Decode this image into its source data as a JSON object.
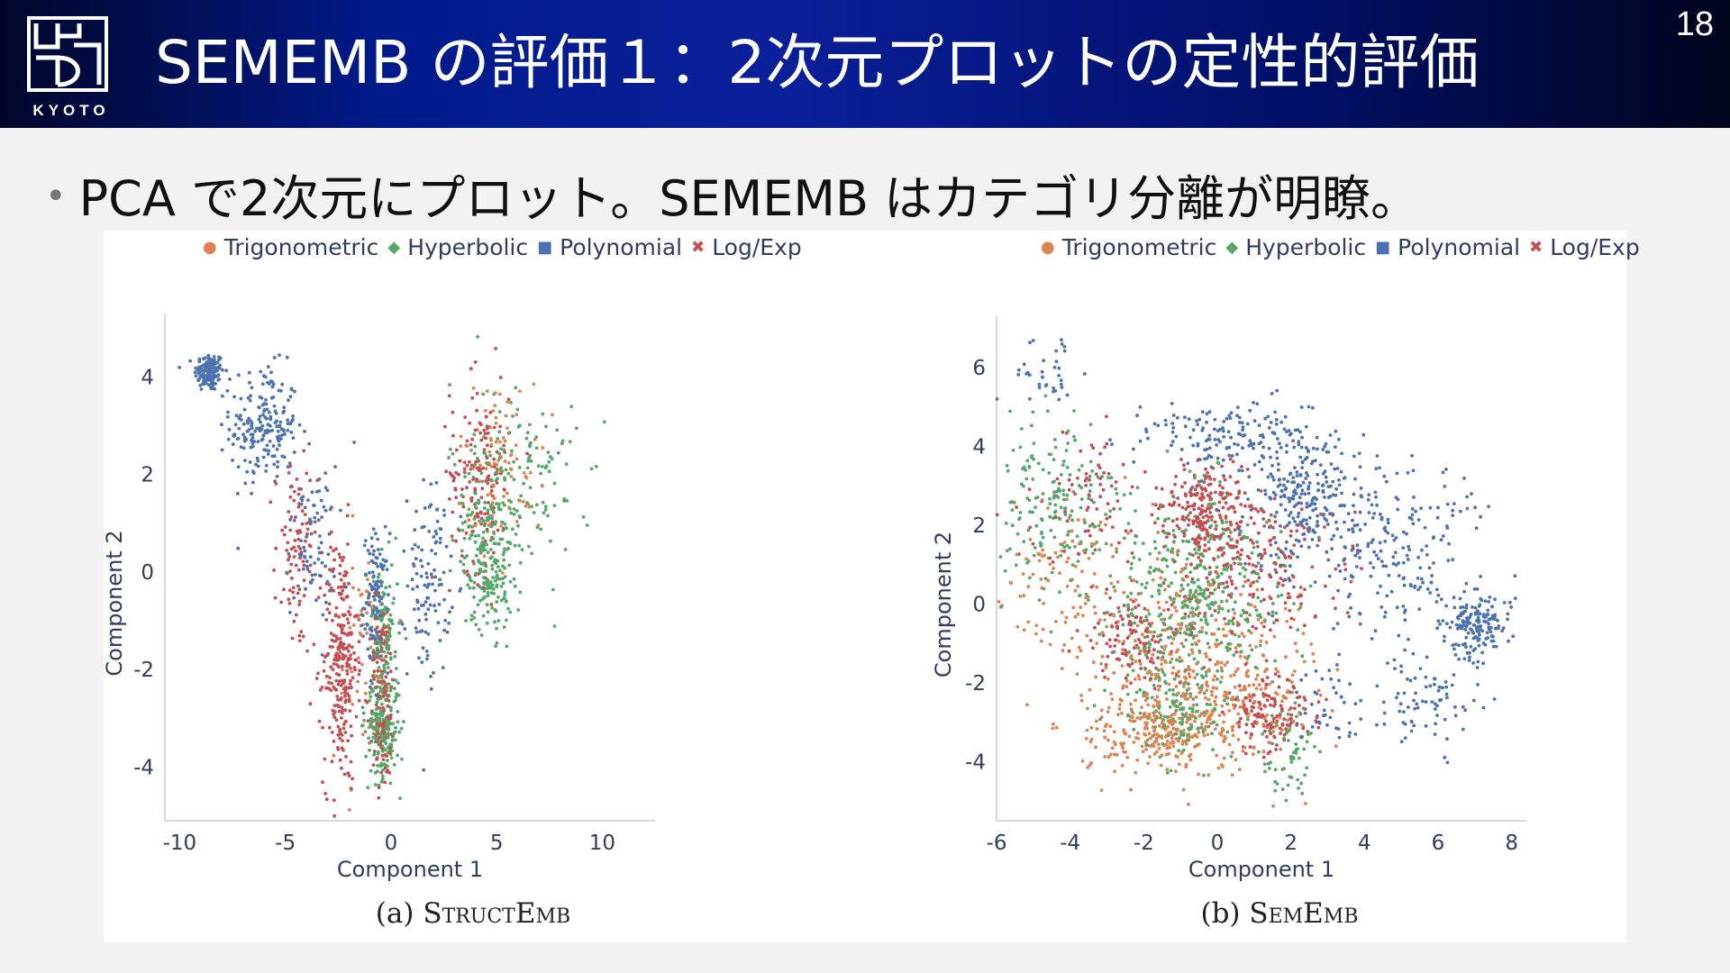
{
  "header": {
    "title": "SEMEMB の評価１：2次元プロットの定性的評価",
    "page_number": "18",
    "logo_text": "KYOTO"
  },
  "bullet": {
    "text": "PCA で2次元にプロット。SEMEMB はカテゴリ分離が明瞭。"
  },
  "colors": {
    "Trigonometric": "#dd8452",
    "Hyperbolic": "#55a868",
    "Polynomial": "#4c72b0",
    "Log/Exp": "#c44e52",
    "header_gradient_mid": "#0a1f9a"
  },
  "legend": [
    {
      "name": "Trigonometric",
      "marker": "●"
    },
    {
      "name": "Hyperbolic",
      "marker": "◆"
    },
    {
      "name": "Polynomial",
      "marker": "■"
    },
    {
      "name": "Log/Exp",
      "marker": "✖"
    }
  ],
  "chart_data": [
    {
      "type": "scatter",
      "caption_prefix": "(a) ",
      "caption_name": "StructEmb",
      "xlabel": "Component 1",
      "ylabel": "Component 2",
      "xlim": [
        -10.7,
        12.5
      ],
      "ylim": [
        -5.1,
        5.3
      ],
      "xticks": [
        -10,
        -5,
        0,
        5,
        10
      ],
      "yticks": [
        4,
        2,
        0,
        -2,
        -4
      ],
      "series": [
        {
          "name": "Polynomial",
          "clusters": [
            {
              "cx": -8.6,
              "cy": 4.1,
              "sx": 0.35,
              "sy": 0.2,
              "n": 140
            },
            {
              "cx": -6.0,
              "cy": 3.0,
              "sx": 0.8,
              "sy": 0.6,
              "n": 200
            },
            {
              "cx": -3.8,
              "cy": 0.6,
              "sx": 0.6,
              "sy": 0.8,
              "n": 80
            },
            {
              "cx": -0.7,
              "cy": -0.6,
              "sx": 0.3,
              "sy": 0.7,
              "n": 120
            },
            {
              "cx": 1.8,
              "cy": -0.2,
              "sx": 0.5,
              "sy": 1.0,
              "n": 110
            }
          ]
        },
        {
          "name": "Log/Exp",
          "clusters": [
            {
              "cx": -4.5,
              "cy": 0.3,
              "sx": 0.5,
              "sy": 1.0,
              "n": 90
            },
            {
              "cx": -2.4,
              "cy": -1.8,
              "sx": 0.4,
              "sy": 1.3,
              "n": 260
            },
            {
              "cx": -0.4,
              "cy": -2.5,
              "sx": 0.3,
              "sy": 1.0,
              "n": 150
            },
            {
              "cx": 4.2,
              "cy": 2.0,
              "sx": 0.7,
              "sy": 1.0,
              "n": 150
            }
          ]
        },
        {
          "name": "Hyperbolic",
          "clusters": [
            {
              "cx": -0.4,
              "cy": -3.2,
              "sx": 0.4,
              "sy": 0.5,
              "n": 200
            },
            {
              "cx": -0.3,
              "cy": -1.3,
              "sx": 0.35,
              "sy": 0.8,
              "n": 110
            },
            {
              "cx": 4.6,
              "cy": 0.2,
              "sx": 0.6,
              "sy": 0.7,
              "n": 200
            },
            {
              "cx": 5.8,
              "cy": 1.8,
              "sx": 1.5,
              "sy": 1.1,
              "n": 170
            }
          ]
        },
        {
          "name": "Trigonometric",
          "clusters": [
            {
              "cx": 5.2,
              "cy": 2.3,
              "sx": 1.0,
              "sy": 0.8,
              "n": 90
            },
            {
              "cx": -1.5,
              "cy": -1.7,
              "sx": 0.7,
              "sy": 1.2,
              "n": 50
            }
          ]
        }
      ]
    },
    {
      "type": "scatter",
      "caption_prefix": "(b) ",
      "caption_name": "SemEmb",
      "xlabel": "Component 1",
      "ylabel": "Component 2",
      "xlim": [
        -6,
        8.4
      ],
      "ylim": [
        -5.5,
        7.3
      ],
      "xticks": [
        -6,
        -4,
        -2,
        0,
        2,
        4,
        6,
        8
      ],
      "yticks": [
        6,
        4,
        2,
        0,
        -2,
        -4
      ],
      "series": [
        {
          "name": "Polynomial",
          "clusters": [
            {
              "cx": -4.6,
              "cy": 5.9,
              "sx": 0.6,
              "sy": 0.45,
              "n": 35
            },
            {
              "cx": 0.5,
              "cy": 4.2,
              "sx": 1.2,
              "sy": 0.5,
              "n": 160
            },
            {
              "cx": 2.3,
              "cy": 2.7,
              "sx": 0.7,
              "sy": 0.8,
              "n": 220
            },
            {
              "cx": 4.6,
              "cy": 1.5,
              "sx": 1.2,
              "sy": 1.0,
              "n": 210
            },
            {
              "cx": 7.0,
              "cy": -0.5,
              "sx": 0.45,
              "sy": 0.4,
              "n": 170
            },
            {
              "cx": 5.6,
              "cy": -2.3,
              "sx": 0.9,
              "sy": 0.8,
              "n": 80
            },
            {
              "cx": 3.0,
              "cy": -2.6,
              "sx": 0.7,
              "sy": 0.5,
              "n": 40
            }
          ]
        },
        {
          "name": "Log/Exp",
          "clusters": [
            {
              "cx": -0.3,
              "cy": 2.3,
              "sx": 0.6,
              "sy": 0.6,
              "n": 220
            },
            {
              "cx": 1.0,
              "cy": 1.0,
              "sx": 1.1,
              "sy": 1.0,
              "n": 220
            },
            {
              "cx": -2.3,
              "cy": -0.9,
              "sx": 0.6,
              "sy": 0.5,
              "n": 110
            },
            {
              "cx": 1.5,
              "cy": -2.8,
              "sx": 0.6,
              "sy": 0.5,
              "n": 130
            },
            {
              "cx": -3.5,
              "cy": 2.5,
              "sx": 0.8,
              "sy": 1.0,
              "n": 80
            }
          ]
        },
        {
          "name": "Hyperbolic",
          "clusters": [
            {
              "cx": -4.4,
              "cy": 2.5,
              "sx": 0.8,
              "sy": 1.0,
              "n": 180
            },
            {
              "cx": -0.6,
              "cy": 0.3,
              "sx": 1.2,
              "sy": 1.3,
              "n": 430
            },
            {
              "cx": -1.2,
              "cy": -2.6,
              "sx": 0.8,
              "sy": 0.6,
              "n": 120
            },
            {
              "cx": 2.0,
              "cy": -3.8,
              "sx": 0.4,
              "sy": 0.6,
              "n": 60
            }
          ]
        },
        {
          "name": "Trigonometric",
          "clusters": [
            {
              "cx": -1.8,
              "cy": -3.2,
              "sx": 1.0,
              "sy": 0.5,
              "n": 250
            },
            {
              "cx": 0.2,
              "cy": -2.2,
              "sx": 1.3,
              "sy": 1.0,
              "n": 280
            },
            {
              "cx": -4.0,
              "cy": 0.5,
              "sx": 0.9,
              "sy": 1.3,
              "n": 110
            },
            {
              "cx": -1.0,
              "cy": -0.6,
              "sx": 1.2,
              "sy": 1.1,
              "n": 150
            }
          ]
        }
      ]
    }
  ]
}
